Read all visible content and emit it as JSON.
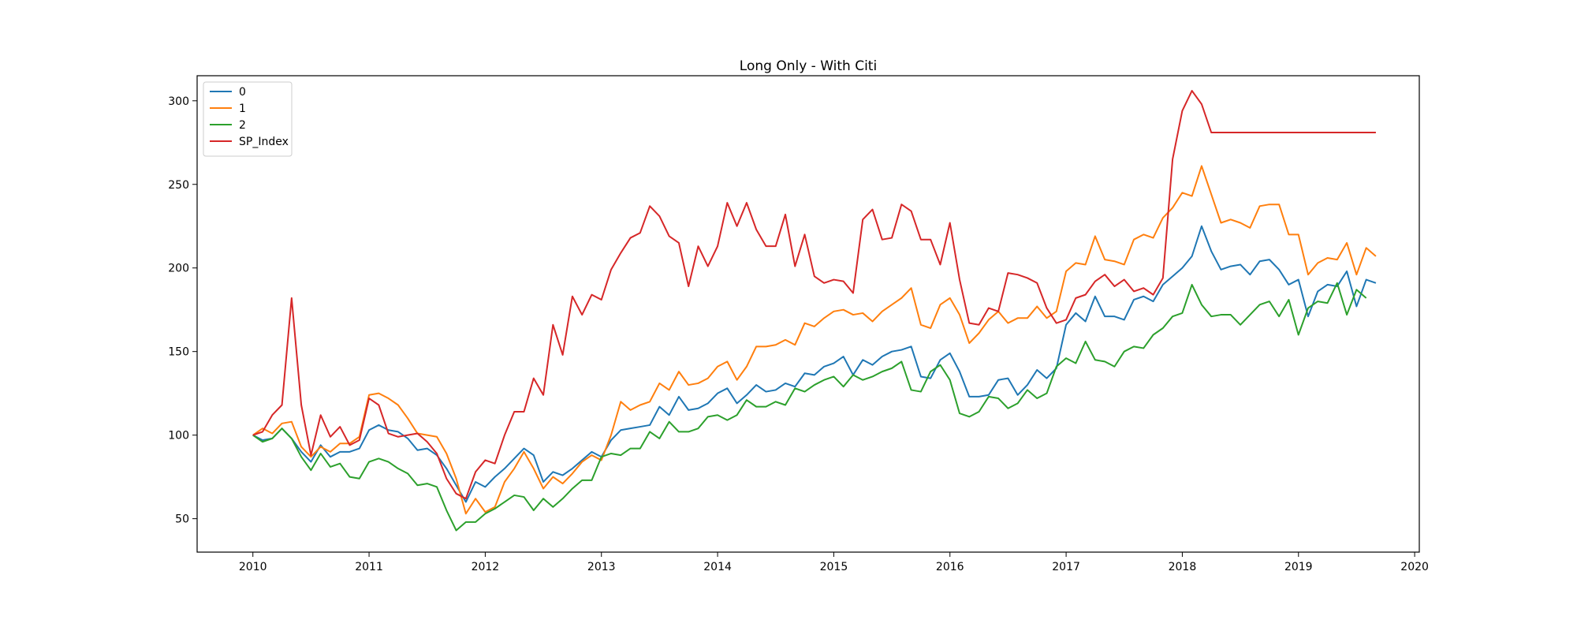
{
  "chart_data": {
    "type": "line",
    "title": "Long Only - With Citi",
    "xlabel": "",
    "ylabel": "",
    "xlim": [
      2009.52,
      2020.04
    ],
    "ylim": [
      30,
      315
    ],
    "x_ticks": [
      2010,
      2011,
      2012,
      2013,
      2014,
      2015,
      2016,
      2017,
      2018,
      2019,
      2020
    ],
    "y_ticks": [
      50,
      100,
      150,
      200,
      250,
      300
    ],
    "grid": false,
    "legend_position": "top-left",
    "x_start": 2010.0,
    "x_step": 0.08333,
    "series": [
      {
        "name": "0",
        "color": "#1f77b4",
        "values": [
          100,
          97,
          98,
          104,
          98,
          90,
          84,
          94,
          87,
          90,
          90,
          92,
          103,
          106,
          103,
          102,
          98,
          91,
          92,
          88,
          80,
          70,
          60,
          72,
          69,
          75,
          80,
          86,
          92,
          88,
          72,
          78,
          76,
          80,
          85,
          90,
          87,
          97,
          103,
          104,
          105,
          106,
          117,
          112,
          123,
          115,
          116,
          119,
          125,
          128,
          119,
          124,
          130,
          126,
          127,
          131,
          129,
          137,
          136,
          141,
          143,
          147,
          136,
          145,
          142,
          147,
          150,
          151,
          153,
          135,
          134,
          145,
          149,
          138,
          123,
          123,
          124,
          133,
          134,
          124,
          130,
          139,
          134,
          140,
          166,
          173,
          168,
          183,
          171,
          171,
          169,
          181,
          183,
          180,
          190,
          195,
          200,
          207,
          225,
          210,
          199,
          201,
          202,
          196,
          204,
          205,
          199,
          190,
          193,
          171,
          186,
          190,
          189,
          198,
          177,
          193,
          191
        ]
      },
      {
        "name": "1",
        "color": "#ff7f0e",
        "values": [
          100,
          104,
          101,
          107,
          108,
          93,
          87,
          93,
          90,
          95,
          95,
          99,
          124,
          125,
          122,
          118,
          110,
          101,
          100,
          99,
          89,
          74,
          53,
          62,
          54,
          57,
          72,
          80,
          90,
          80,
          68,
          75,
          71,
          77,
          84,
          88,
          85,
          100,
          120,
          115,
          118,
          120,
          131,
          127,
          138,
          130,
          131,
          134,
          141,
          144,
          133,
          141,
          153,
          153,
          154,
          157,
          154,
          167,
          165,
          170,
          174,
          175,
          172,
          173,
          168,
          174,
          178,
          182,
          188,
          166,
          164,
          178,
          182,
          172,
          155,
          161,
          169,
          174,
          167,
          170,
          170,
          177,
          170,
          174,
          198,
          203,
          202,
          219,
          205,
          204,
          202,
          217,
          220,
          218,
          230,
          236,
          245,
          243,
          261,
          244,
          227,
          229,
          227,
          224,
          237,
          238,
          238,
          220,
          220,
          196,
          203,
          206,
          205,
          215,
          196,
          212,
          207
        ]
      },
      {
        "name": "2",
        "color": "#2ca02c",
        "values": [
          100,
          96,
          98,
          104,
          98,
          87,
          79,
          89,
          81,
          83,
          75,
          74,
          84,
          86,
          84,
          80,
          77,
          70,
          71,
          69,
          55,
          43,
          48,
          48,
          53,
          56,
          60,
          64,
          63,
          55,
          62,
          57,
          62,
          68,
          73,
          73,
          87,
          89,
          88,
          92,
          92,
          102,
          98,
          108,
          102,
          102,
          104,
          111,
          112,
          109,
          112,
          121,
          117,
          117,
          120,
          118,
          128,
          126,
          130,
          133,
          135,
          129,
          136,
          133,
          135,
          138,
          140,
          144,
          127,
          126,
          138,
          142,
          133,
          113,
          111,
          114,
          123,
          122,
          116,
          119,
          127,
          122,
          125,
          141,
          146,
          143,
          156,
          145,
          144,
          141,
          150,
          153,
          152,
          160,
          164,
          171,
          173,
          190,
          178,
          171,
          172,
          172,
          166,
          172,
          178,
          180,
          171,
          181,
          160,
          176,
          180,
          179,
          191,
          172,
          187,
          182
        ]
      },
      {
        "name": "SP_Index",
        "color": "#d62728",
        "values": [
          100,
          102,
          112,
          118,
          182,
          118,
          88,
          112,
          99,
          105,
          94,
          97,
          122,
          118,
          101,
          99,
          100,
          101,
          96,
          89,
          74,
          65,
          62,
          78,
          85,
          83,
          100,
          114,
          114,
          134,
          124,
          166,
          148,
          183,
          172,
          184,
          181,
          199,
          209,
          218,
          221,
          237,
          231,
          219,
          215,
          189,
          213,
          201,
          213,
          239,
          225,
          239,
          223,
          213,
          213,
          232,
          201,
          220,
          195,
          191,
          193,
          192,
          185,
          229,
          235,
          217,
          218,
          238,
          234,
          217,
          217,
          202,
          227,
          193,
          167,
          166,
          176,
          174,
          197,
          196,
          194,
          191,
          176,
          167,
          169,
          182,
          184,
          192,
          196,
          189,
          193,
          186,
          188,
          184,
          194,
          265,
          294,
          306,
          298,
          281,
          281,
          281,
          281,
          281,
          281,
          281,
          281,
          281,
          281,
          281,
          281,
          281,
          281,
          281,
          281,
          281,
          281
        ]
      }
    ]
  }
}
